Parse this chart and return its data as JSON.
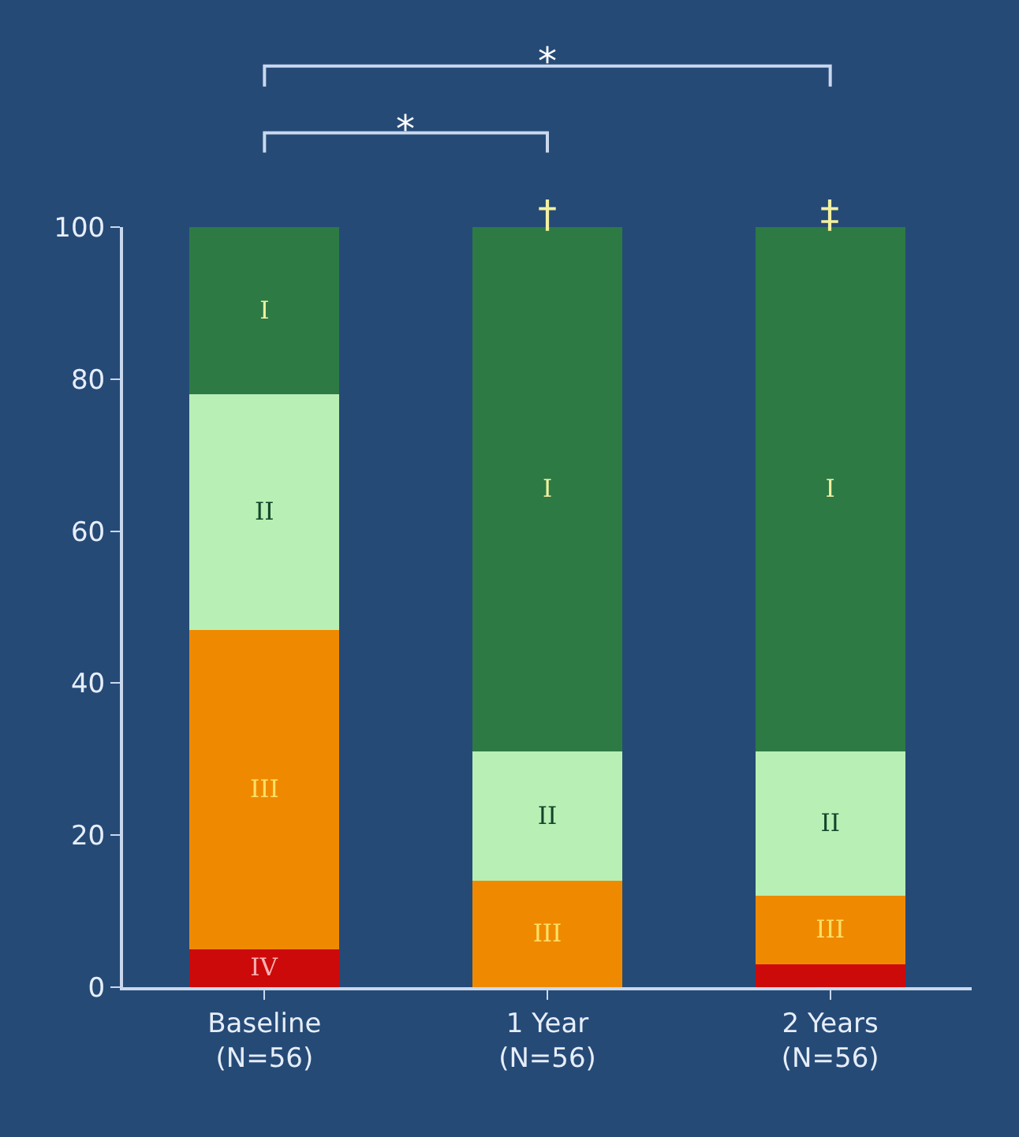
{
  "chart_data": {
    "type": "bar",
    "stacked": true,
    "categories": [
      "Baseline\n(N=56)",
      "1 Year\n(N=56)",
      "2 Years\n(N=56)"
    ],
    "series": [
      {
        "name": "IV",
        "color": "#cc0a0a",
        "values": [
          5,
          null,
          3
        ]
      },
      {
        "name": "III",
        "color": "#ef8a00",
        "values": [
          42,
          14,
          9
        ]
      },
      {
        "name": "II",
        "color": "#b8efb4",
        "values": [
          31,
          17,
          19
        ]
      },
      {
        "name": "I",
        "color": "#2d7a45",
        "values": [
          22,
          69,
          69
        ]
      }
    ],
    "ylim": [
      0,
      100
    ],
    "yticks": [
      0,
      20,
      40,
      60,
      80,
      100
    ],
    "grid": false,
    "legend": false,
    "annotations": [
      "*",
      "*",
      "†",
      "‡"
    ]
  }
}
